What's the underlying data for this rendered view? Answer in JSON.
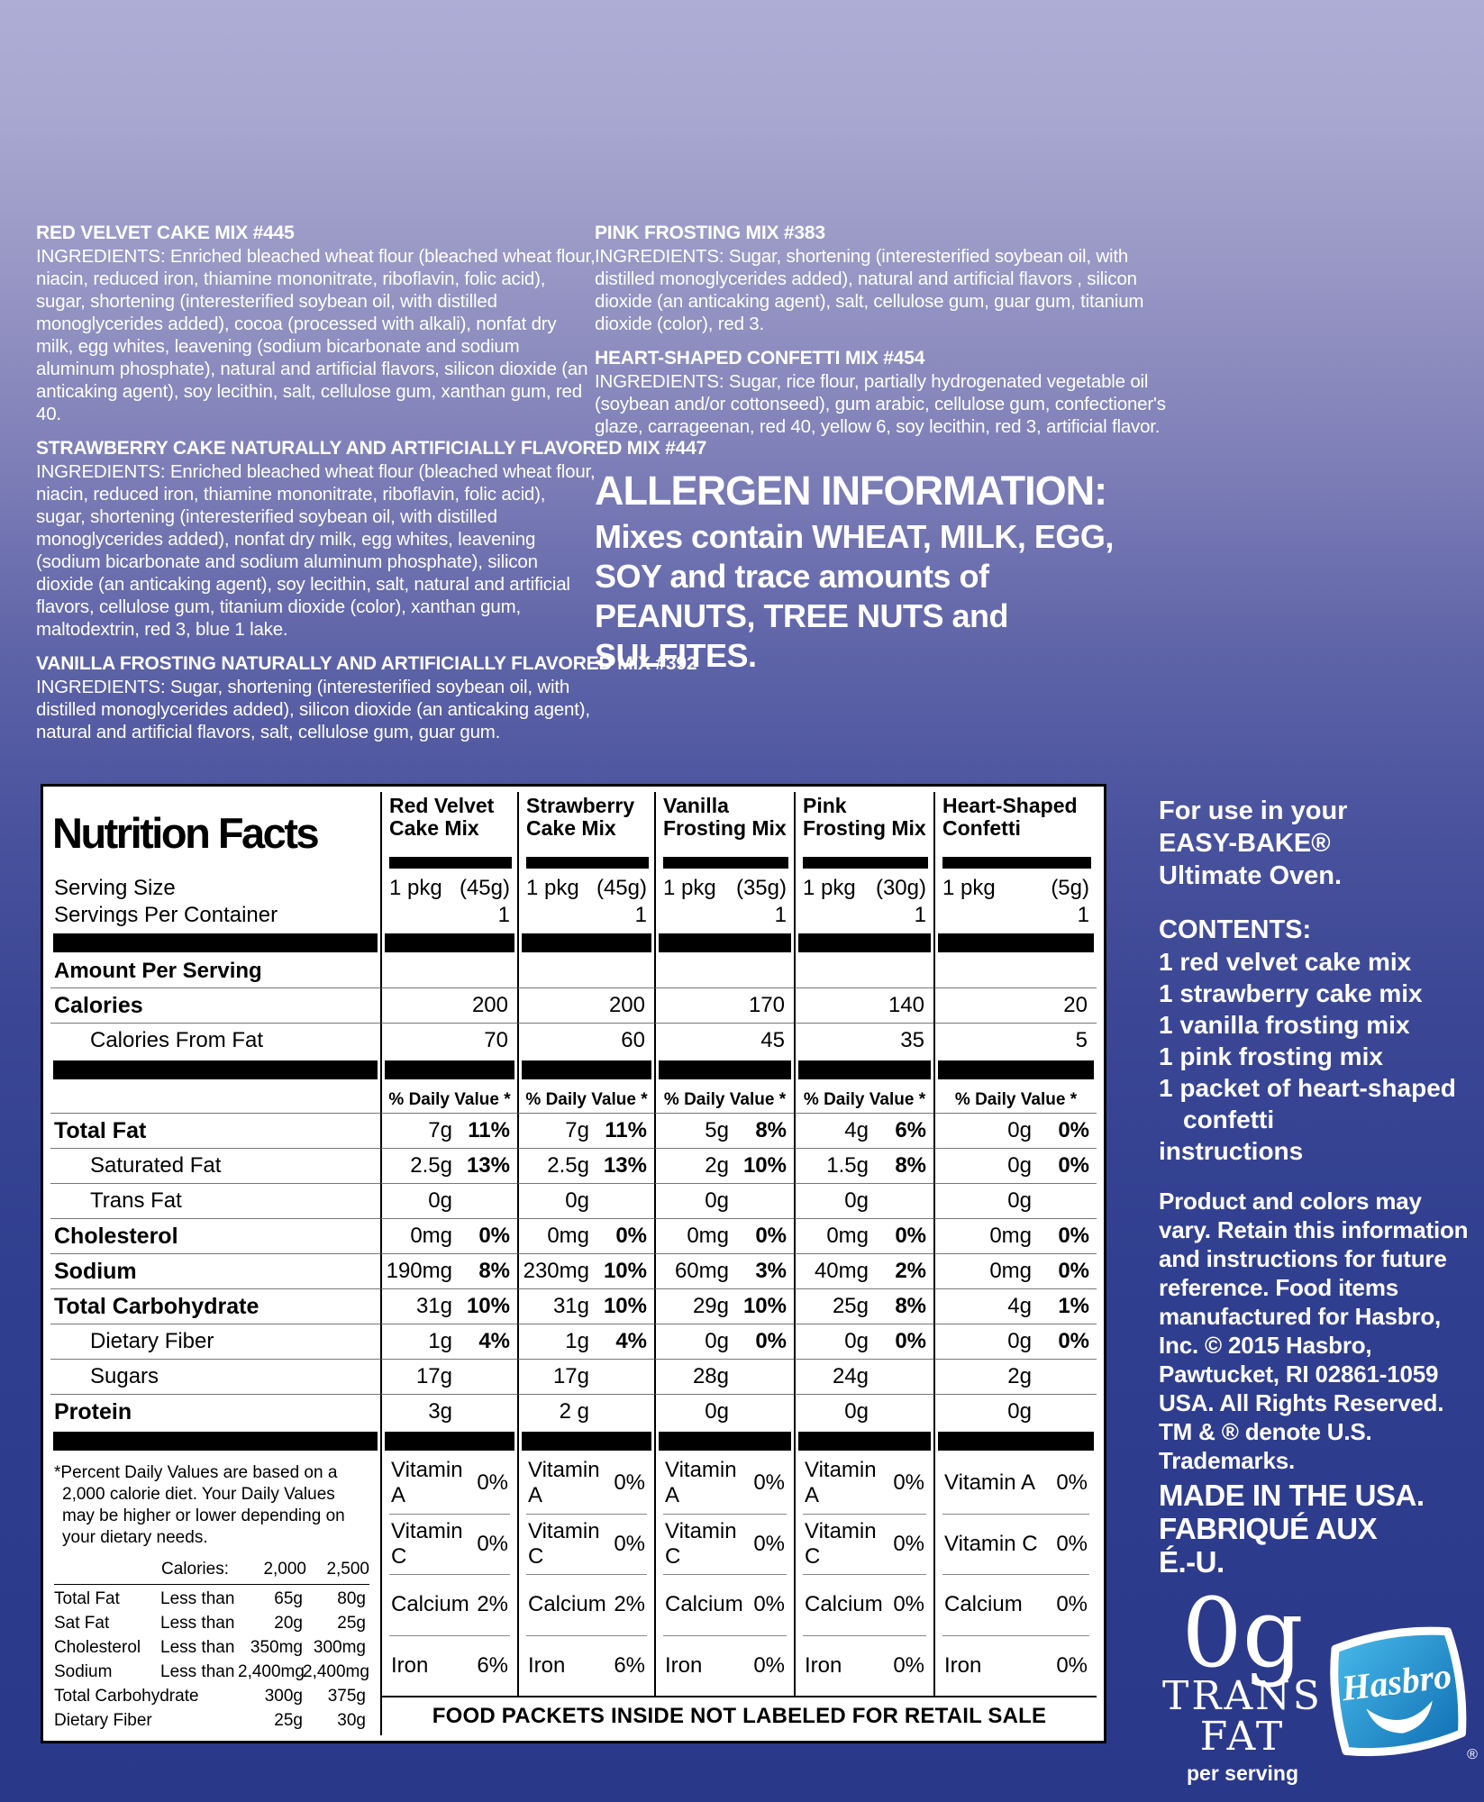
{
  "meta": {
    "background_top": "#aeadd6",
    "background_bottom": "#2a388a",
    "table_background": "#ffffff",
    "text_color_light": "#ffffff",
    "text_color_dark": "#000000",
    "hasbro_logo_blue_light": "#49bae9",
    "hasbro_logo_blue_dark": "#0f6fb4"
  },
  "ingredients": {
    "left": [
      {
        "title": "RED VELVET CAKE MIX #445",
        "text": "INGREDIENTS: Enriched bleached wheat flour (bleached wheat flour, niacin, reduced iron, thiamine mononitrate, riboflavin, folic acid), sugar, shortening (interesterified soybean oil, with distilled monoglycerides added), cocoa (processed with alkali), nonfat dry milk, egg whites, leavening (sodium bicarbonate and sodium aluminum phosphate), natural and artificial flavors, silicon dioxide (an anticaking agent), soy lecithin, salt, cellulose gum, xanthan gum, red 40."
      },
      {
        "title": "STRAWBERRY CAKE NATURALLY AND ARTIFICIALLY FLAVORED MIX #447",
        "text": "INGREDIENTS: Enriched bleached wheat flour (bleached wheat flour, niacin, reduced iron, thiamine mononitrate, riboflavin, folic acid), sugar, shortening (interesterified soybean oil, with distilled monoglycerides added), nonfat dry milk, egg whites, leavening (sodium bicarbonate and sodium aluminum phosphate), silicon dioxide (an anticaking agent), soy lecithin, salt, natural and artificial flavors, cellulose gum, titanium dioxide (color), xanthan gum, maltodextrin, red 3, blue 1 lake."
      },
      {
        "title": "VANILLA FROSTING NATURALLY AND ARTIFICIALLY FLAVORED MIX #392",
        "text": "INGREDIENTS: Sugar, shortening (interesterified soybean oil, with distilled monoglycerides added), silicon dioxide (an anticaking agent), natural and artificial flavors, salt, cellulose gum, guar gum."
      }
    ],
    "right": [
      {
        "title": "PINK FROSTING MIX #383",
        "text": "INGREDIENTS: Sugar, shortening (interesterified soybean oil, with distilled monoglycerides added), natural and artificial flavors , silicon dioxide (an anticaking agent), salt, cellulose gum, guar gum, titanium dioxide (color), red 3."
      },
      {
        "title": "HEART-SHAPED CONFETTI MIX #454",
        "text": "INGREDIENTS: Sugar, rice flour, partially hydrogenated vegetable oil (soybean and/or cottonseed), gum arabic, cellulose gum, confectioner's glaze, carrageenan, red 40, yellow 6, soy lecithin, red 3, artificial flavor."
      }
    ]
  },
  "allergen": {
    "title": "ALLERGEN INFORMATION:",
    "body": "Mixes contain WHEAT, MILK, EGG, SOY and trace amounts of PEANUTS, TREE NUTS and SULFITES."
  },
  "nutrition": {
    "title": "Nutrition Facts",
    "columns": [
      {
        "l1": "Red Velvet",
        "l2": "Cake Mix"
      },
      {
        "l1": "Strawberry",
        "l2": "Cake Mix"
      },
      {
        "l1": "Vanilla",
        "l2": "Frosting Mix"
      },
      {
        "l1": "Pink",
        "l2": "Frosting Mix"
      },
      {
        "l1": "Heart-Shaped",
        "l2": "Confetti"
      }
    ],
    "serving_size_label": "Serving Size",
    "servings_per_container_label": "Servings Per Container",
    "servings": [
      {
        "pkg": "1 pkg",
        "wt": "(45g)",
        "count": "1"
      },
      {
        "pkg": "1 pkg",
        "wt": "(45g)",
        "count": "1"
      },
      {
        "pkg": "1 pkg",
        "wt": "(35g)",
        "count": "1"
      },
      {
        "pkg": "1 pkg",
        "wt": "(30g)",
        "count": "1"
      },
      {
        "pkg": "1 pkg",
        "wt": "(5g)",
        "count": "1"
      }
    ],
    "amount_per_serving_label": "Amount Per Serving",
    "daily_value_header": "% Daily Value *",
    "rows_top": [
      {
        "label": "Calories",
        "style": "bold",
        "type": "plain",
        "cells": [
          "200",
          "200",
          "170",
          "140",
          "20"
        ]
      },
      {
        "label": "Calories From Fat",
        "style": "indent",
        "type": "plain",
        "cells": [
          "70",
          "60",
          "45",
          "35",
          "5"
        ]
      }
    ],
    "rows_main": [
      {
        "label": "Total Fat",
        "style": "bold",
        "type": "dv",
        "cells": [
          {
            "a": "7g",
            "d": "11%"
          },
          {
            "a": "7g",
            "d": "11%"
          },
          {
            "a": "5g",
            "d": "8%"
          },
          {
            "a": "4g",
            "d": "6%"
          },
          {
            "a": "0g",
            "d": "0%"
          }
        ]
      },
      {
        "label": "Saturated Fat",
        "style": "indent",
        "type": "dv",
        "cells": [
          {
            "a": "2.5g",
            "d": "13%"
          },
          {
            "a": "2.5g",
            "d": "13%"
          },
          {
            "a": "2g",
            "d": "10%"
          },
          {
            "a": "1.5g",
            "d": "8%"
          },
          {
            "a": "0g",
            "d": "0%"
          }
        ]
      },
      {
        "label": "Trans Fat",
        "style": "indent",
        "type": "dv",
        "cells": [
          {
            "a": "0g",
            "d": ""
          },
          {
            "a": "0g",
            "d": ""
          },
          {
            "a": "0g",
            "d": ""
          },
          {
            "a": "0g",
            "d": ""
          },
          {
            "a": "0g",
            "d": ""
          }
        ]
      },
      {
        "label": "Cholesterol",
        "style": "bold",
        "type": "dv",
        "cells": [
          {
            "a": "0mg",
            "d": "0%"
          },
          {
            "a": "0mg",
            "d": "0%"
          },
          {
            "a": "0mg",
            "d": "0%"
          },
          {
            "a": "0mg",
            "d": "0%"
          },
          {
            "a": "0mg",
            "d": "0%"
          }
        ]
      },
      {
        "label": "Sodium",
        "style": "bold",
        "type": "dv",
        "cells": [
          {
            "a": "190mg",
            "d": "8%"
          },
          {
            "a": "230mg",
            "d": "10%"
          },
          {
            "a": "60mg",
            "d": "3%"
          },
          {
            "a": "40mg",
            "d": "2%"
          },
          {
            "a": "0mg",
            "d": "0%"
          }
        ]
      },
      {
        "label": "Total Carbohydrate",
        "style": "bold",
        "type": "dv",
        "cells": [
          {
            "a": "31g",
            "d": "10%"
          },
          {
            "a": "31g",
            "d": "10%"
          },
          {
            "a": "29g",
            "d": "10%"
          },
          {
            "a": "25g",
            "d": "8%"
          },
          {
            "a": "4g",
            "d": "1%"
          }
        ]
      },
      {
        "label": "Dietary Fiber",
        "style": "indent",
        "type": "dv",
        "cells": [
          {
            "a": "1g",
            "d": "4%"
          },
          {
            "a": "1g",
            "d": "4%"
          },
          {
            "a": "0g",
            "d": "0%"
          },
          {
            "a": "0g",
            "d": "0%"
          },
          {
            "a": "0g",
            "d": "0%"
          }
        ]
      },
      {
        "label": "Sugars",
        "style": "indent",
        "type": "dv",
        "cells": [
          {
            "a": "17g",
            "d": ""
          },
          {
            "a": "17g",
            "d": ""
          },
          {
            "a": "28g",
            "d": ""
          },
          {
            "a": "24g",
            "d": ""
          },
          {
            "a": "2g",
            "d": ""
          }
        ]
      },
      {
        "label": "Protein",
        "style": "bold",
        "type": "dv",
        "cells": [
          {
            "a": "3g",
            "d": ""
          },
          {
            "a": "2 g",
            "d": ""
          },
          {
            "a": "0g",
            "d": ""
          },
          {
            "a": "0g",
            "d": ""
          },
          {
            "a": "0g",
            "d": ""
          }
        ]
      }
    ],
    "vitamins": [
      {
        "name": "Vitamin A",
        "values": [
          "0%",
          "0%",
          "0%",
          "0%",
          "0%"
        ]
      },
      {
        "name": "Vitamin C",
        "values": [
          "0%",
          "0%",
          "0%",
          "0%",
          "0%"
        ]
      },
      {
        "name": "Calcium",
        "values": [
          "2%",
          "2%",
          "0%",
          "0%",
          "0%"
        ]
      },
      {
        "name": "Iron",
        "values": [
          "6%",
          "6%",
          "0%",
          "0%",
          "0%"
        ]
      }
    ],
    "footnote": {
      "text": "*Percent Daily Values are based on a 2,000 calorie diet. Your Daily Values may be higher or lower depending on your dietary needs.",
      "calories_label": "Calories:",
      "calories_2000": "2,000",
      "calories_2500": "2,500",
      "rows": [
        {
          "name": "Total Fat",
          "cond": "Less than",
          "v1": "65g",
          "v2": "80g"
        },
        {
          "name": "Sat Fat",
          "cond": "Less than",
          "v1": "20g",
          "v2": "25g"
        },
        {
          "name": "Cholesterol",
          "cond": "Less than",
          "v1": "350mg",
          "v2": "300mg"
        },
        {
          "name": "Sodium",
          "cond": "Less than",
          "v1": "2,400mg",
          "v2": "2,400mg"
        },
        {
          "name": "Total Carbohydrate",
          "cond": "",
          "v1": "300g",
          "v2": "375g"
        },
        {
          "name": "Dietary Fiber",
          "cond": "",
          "v1": "25g",
          "v2": "30g"
        }
      ]
    },
    "footer": "FOOD PACKETS INSIDE NOT LABELED FOR RETAIL SALE"
  },
  "sidebar": {
    "for_use_lines": [
      "For use in your",
      "EASY-BAKE®",
      "Ultimate Oven."
    ],
    "contents_title": "CONTENTS:",
    "contents": [
      "1 red velvet cake mix",
      "1 strawberry cake mix",
      "1 vanilla frosting mix",
      "1 pink frosting mix",
      "1 packet of heart-shaped confetti",
      "instructions"
    ],
    "legal": "Product and colors may vary. Retain this information and instructions for future reference. Food items manufactured for Hasbro, Inc. © 2015 Hasbro, Pawtucket, RI 02861-1059 USA. All Rights Reserved. TM & ® denote U.S. Trademarks.",
    "made_in_lines": [
      "MADE IN THE USA.",
      "FABRIQUÉ AUX",
      "É.-U."
    ],
    "trans_fat_badge": {
      "amount": "0g",
      "word1": "TRANS",
      "word2": "FAT",
      "sub": "per serving"
    },
    "hasbro_logo_text": "Hasbro",
    "hasbro_reg": "®"
  }
}
